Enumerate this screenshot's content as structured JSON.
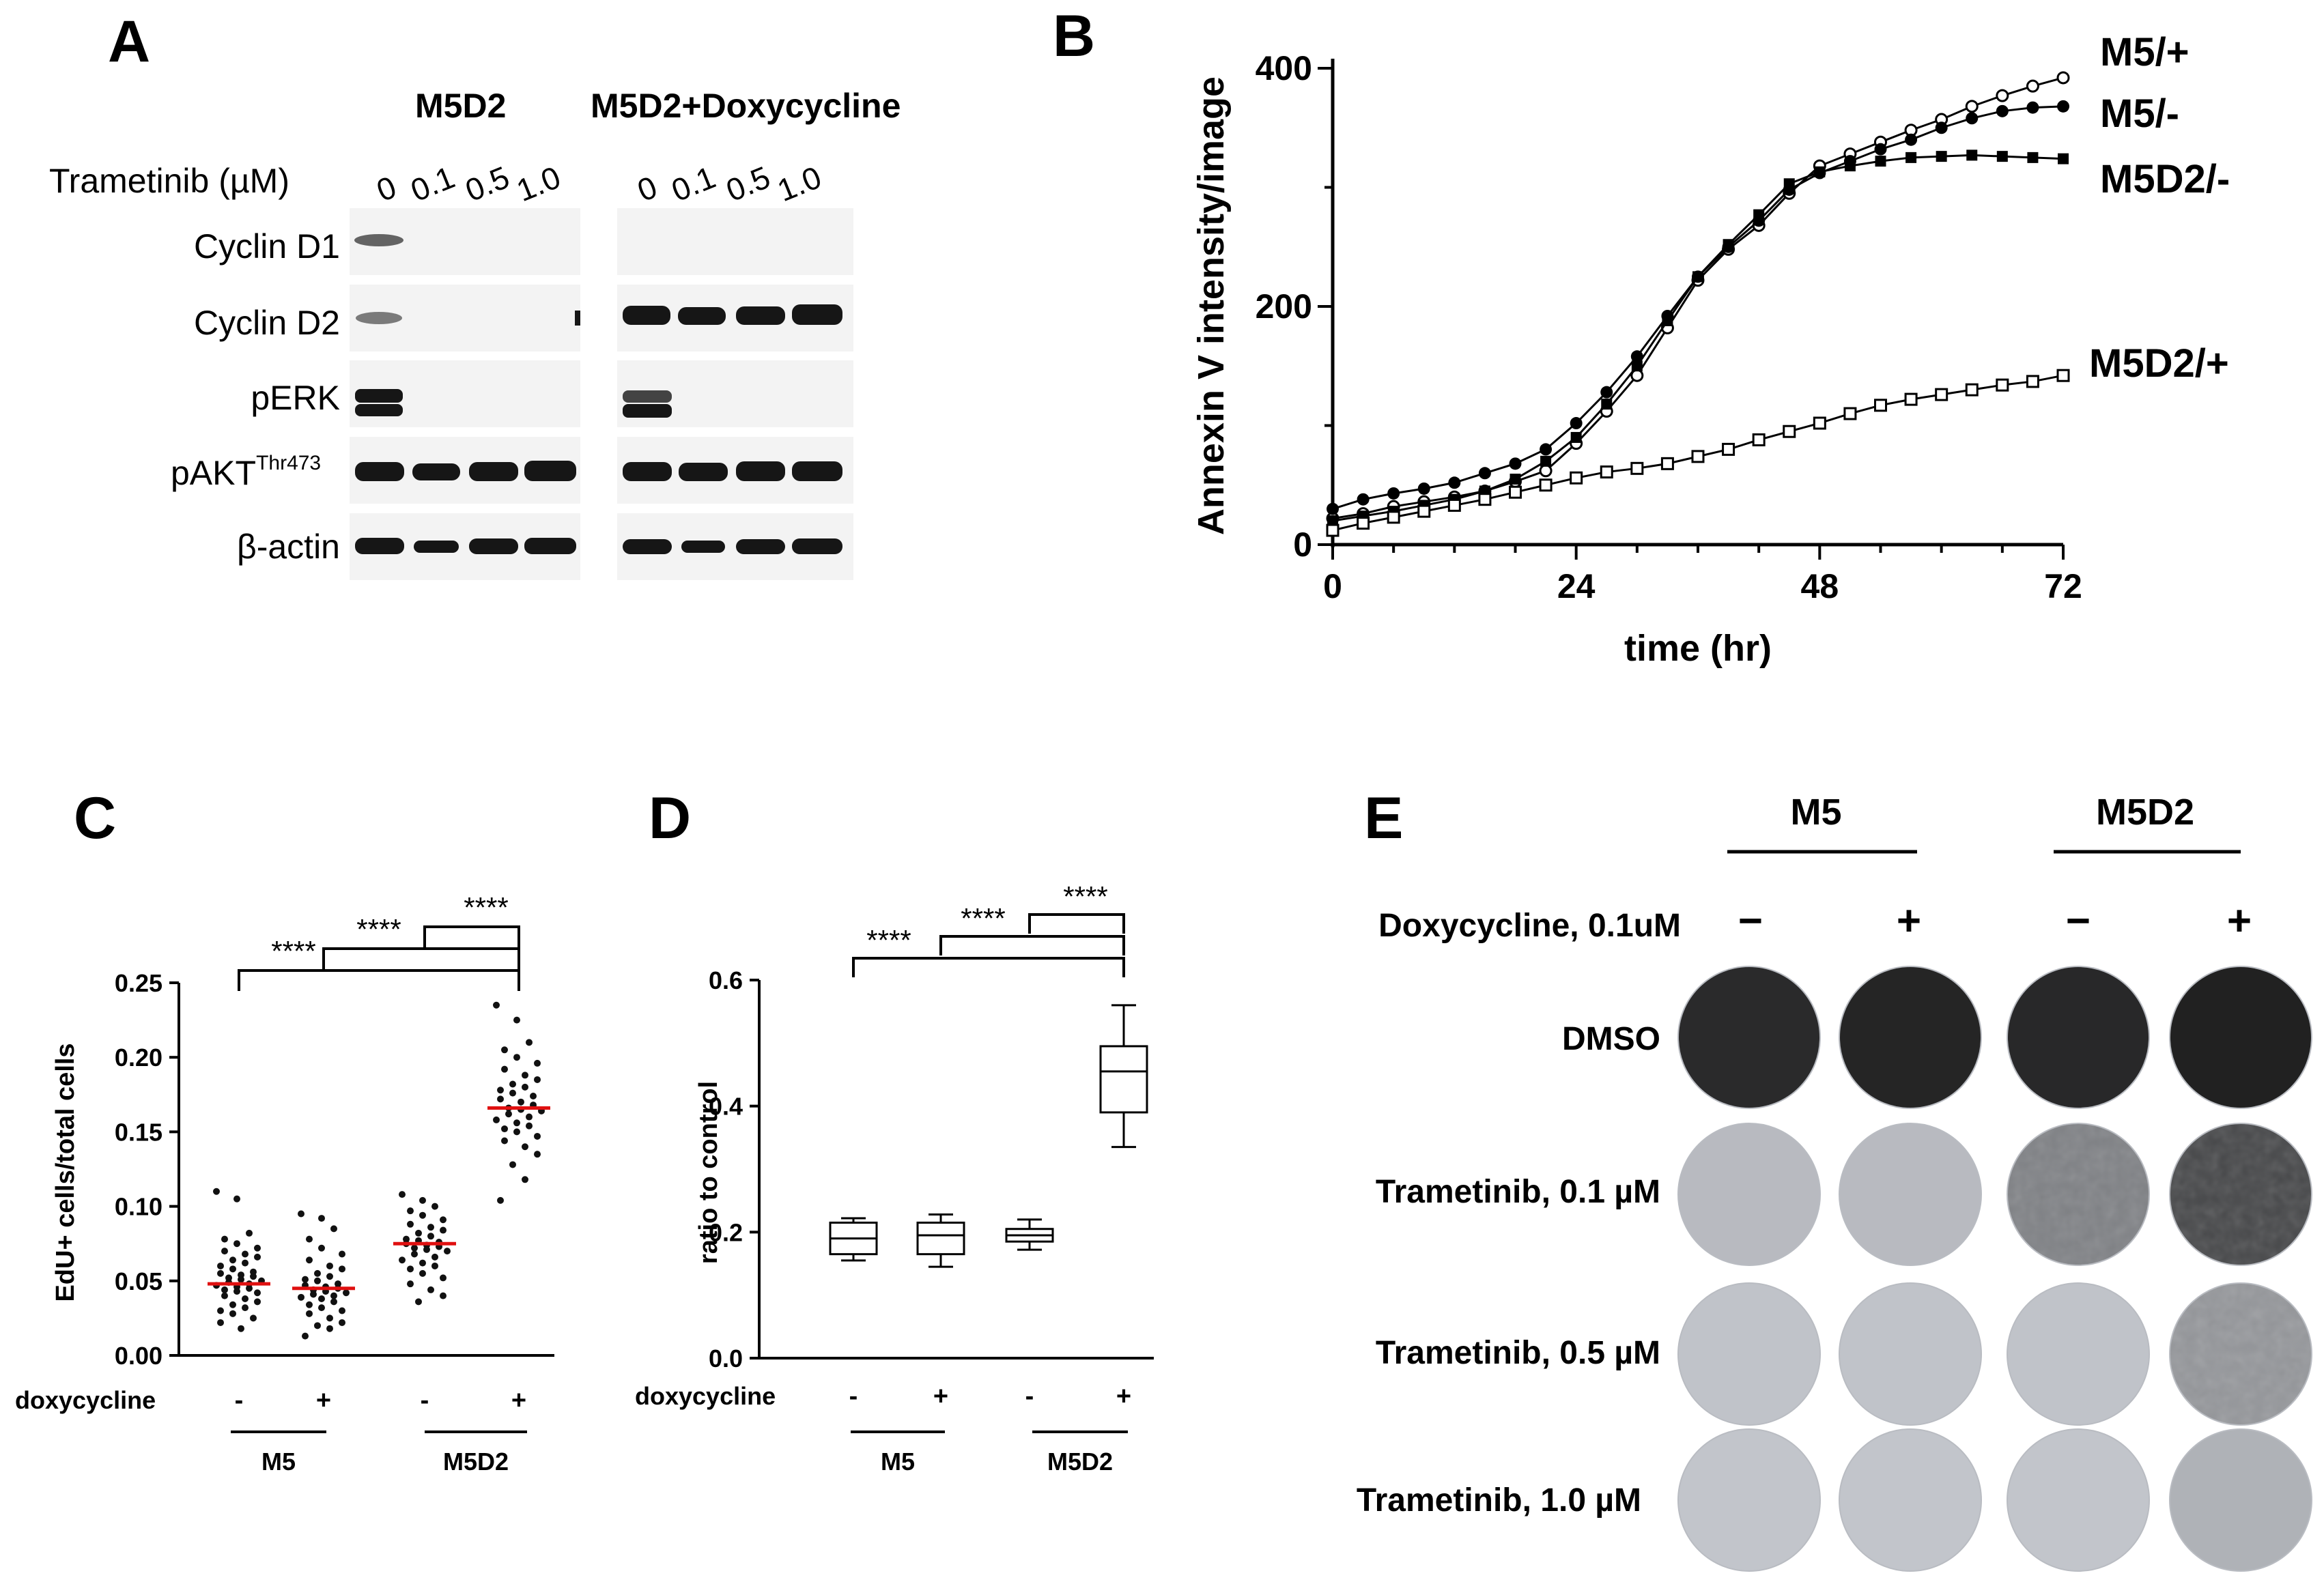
{
  "panel_a": {
    "letter": "A",
    "group_labels": [
      "M5D2",
      "M5D2+Doxycycline"
    ],
    "dose_label": "Trametinib (µM)",
    "doses": [
      "0",
      "0.1",
      "0.5",
      "1.0"
    ],
    "rows": [
      "Cyclin D1",
      "Cyclin D2",
      "pERK",
      "pAKT",
      "β-actin"
    ],
    "pakt_superscript": "Thr473"
  },
  "panel_b": {
    "letter": "B",
    "chart_data": {
      "type": "line",
      "title": "",
      "xlabel": "time (hr)",
      "ylabel": "Annexin V intensity/image",
      "xlim": [
        0,
        72
      ],
      "ylim": [
        0,
        400
      ],
      "xticks": [
        "0",
        "24",
        "48",
        "72"
      ],
      "yticks": [
        "0",
        "200",
        "400"
      ],
      "x": [
        0,
        3,
        6,
        9,
        12,
        15,
        18,
        21,
        24,
        27,
        30,
        33,
        36,
        39,
        42,
        45,
        48,
        51,
        54,
        57,
        60,
        63,
        66,
        69,
        72
      ],
      "series": [
        {
          "name": "M5/+",
          "marker": "open-circle",
          "values": [
            22,
            26,
            32,
            36,
            40,
            45,
            53,
            62,
            85,
            112,
            142,
            182,
            222,
            248,
            268,
            295,
            318,
            328,
            338,
            348,
            357,
            368,
            377,
            385,
            392
          ]
        },
        {
          "name": "M5/-",
          "marker": "filled-circle",
          "values": [
            30,
            38,
            43,
            47,
            52,
            60,
            68,
            80,
            102,
            128,
            158,
            192,
            225,
            250,
            272,
            298,
            312,
            322,
            332,
            340,
            350,
            358,
            364,
            367,
            368
          ]
        },
        {
          "name": "M5D2/-",
          "marker": "filled-square",
          "values": [
            20,
            24,
            28,
            33,
            38,
            45,
            55,
            70,
            90,
            118,
            150,
            188,
            225,
            252,
            277,
            303,
            313,
            318,
            322,
            325,
            326,
            327,
            326,
            325,
            324
          ]
        },
        {
          "name": "M5D2/+",
          "marker": "open-square",
          "values": [
            12,
            18,
            23,
            28,
            33,
            38,
            44,
            50,
            56,
            61,
            64,
            68,
            74,
            80,
            88,
            95,
            102,
            110,
            117,
            122,
            126,
            130,
            134,
            137,
            142
          ]
        }
      ]
    }
  },
  "panel_c": {
    "letter": "C",
    "chart_data": {
      "type": "scatter",
      "xlabel": "",
      "ylabel": "EdU+ cells/total cells",
      "ylim": [
        0,
        0.25
      ],
      "yticks": [
        "0.00",
        "0.05",
        "0.10",
        "0.15",
        "0.20",
        "0.25"
      ],
      "treatment_label": "doxycycline",
      "treatments": [
        "-",
        "+",
        "-",
        "+"
      ],
      "groups": [
        "M5",
        "M5D2"
      ],
      "means": [
        0.048,
        0.045,
        0.075,
        0.166
      ],
      "points": [
        [
          0.11,
          0.105,
          0.082,
          0.078,
          0.075,
          0.072,
          0.07,
          0.068,
          0.066,
          0.064,
          0.062,
          0.06,
          0.058,
          0.056,
          0.055,
          0.054,
          0.053,
          0.052,
          0.051,
          0.05,
          0.049,
          0.048,
          0.047,
          0.046,
          0.045,
          0.044,
          0.043,
          0.042,
          0.04,
          0.038,
          0.036,
          0.034,
          0.032,
          0.03,
          0.028,
          0.025,
          0.022,
          0.018
        ],
        [
          0.095,
          0.092,
          0.085,
          0.078,
          0.072,
          0.068,
          0.064,
          0.06,
          0.058,
          0.055,
          0.053,
          0.051,
          0.05,
          0.048,
          0.047,
          0.046,
          0.045,
          0.044,
          0.043,
          0.042,
          0.041,
          0.04,
          0.039,
          0.038,
          0.036,
          0.034,
          0.032,
          0.03,
          0.028,
          0.025,
          0.022,
          0.02,
          0.018,
          0.013
        ],
        [
          0.108,
          0.104,
          0.1,
          0.097,
          0.094,
          0.091,
          0.088,
          0.086,
          0.084,
          0.082,
          0.08,
          0.078,
          0.077,
          0.076,
          0.075,
          0.074,
          0.073,
          0.072,
          0.071,
          0.07,
          0.068,
          0.066,
          0.064,
          0.062,
          0.06,
          0.058,
          0.055,
          0.052,
          0.048,
          0.044,
          0.04,
          0.036
        ],
        [
          0.235,
          0.225,
          0.21,
          0.205,
          0.2,
          0.196,
          0.192,
          0.188,
          0.185,
          0.182,
          0.18,
          0.178,
          0.176,
          0.174,
          0.172,
          0.17,
          0.168,
          0.166,
          0.165,
          0.164,
          0.162,
          0.16,
          0.158,
          0.156,
          0.154,
          0.152,
          0.15,
          0.147,
          0.144,
          0.14,
          0.135,
          0.128,
          0.118,
          0.104
        ]
      ],
      "significance": [
        "****",
        "****",
        "****"
      ]
    }
  },
  "panel_d": {
    "letter": "D",
    "chart_data": {
      "type": "box",
      "xlabel": "",
      "ylabel": "ratio to control",
      "ylim": [
        0,
        0.6
      ],
      "yticks": [
        "0.0",
        "0.2",
        "0.4",
        "0.6"
      ],
      "treatment_label": "doxycycline",
      "treatments": [
        "-",
        "+",
        "-",
        "+"
      ],
      "groups": [
        "M5",
        "M5D2"
      ],
      "boxes": [
        {
          "min": 0.155,
          "q1": 0.165,
          "median": 0.19,
          "q3": 0.215,
          "max": 0.222
        },
        {
          "min": 0.145,
          "q1": 0.165,
          "median": 0.195,
          "q3": 0.215,
          "max": 0.228
        },
        {
          "min": 0.172,
          "q1": 0.185,
          "median": 0.195,
          "q3": 0.205,
          "max": 0.22
        },
        {
          "min": 0.335,
          "q1": 0.39,
          "median": 0.455,
          "q3": 0.495,
          "max": 0.56
        }
      ],
      "significance": [
        "****",
        "****",
        "****"
      ]
    }
  },
  "panel_e": {
    "letter": "E",
    "groups": [
      "M5",
      "M5D2"
    ],
    "dox_label": "Doxycycline, 0.1uM",
    "dox_states": [
      "−",
      "+",
      "−",
      "+"
    ],
    "rows": [
      "DMSO",
      "Trametinib, 0.1 µM",
      "Trametinib, 0.5 µM",
      "Trametinib, 1.0 µM"
    ],
    "density": [
      [
        0.92,
        0.95,
        0.93,
        0.97
      ],
      [
        0.1,
        0.1,
        0.42,
        0.75
      ],
      [
        0.05,
        0.05,
        0.05,
        0.3
      ],
      [
        0.04,
        0.04,
        0.04,
        0.15
      ]
    ],
    "colors": {
      "dark": "#1c1c1c",
      "light": "#c9ccd2"
    }
  }
}
